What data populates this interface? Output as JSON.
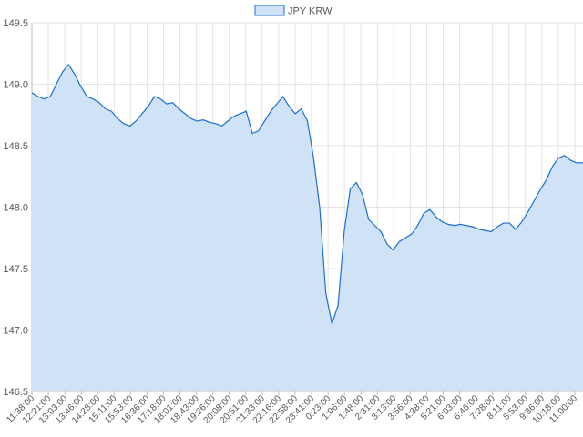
{
  "chart_data": {
    "type": "area",
    "legend": {
      "label": "JPY KRW",
      "position": "top-center"
    },
    "grid": true,
    "ylim": [
      146.5,
      149.5
    ],
    "y_ticks": [
      149.5,
      149.0,
      148.5,
      148.0,
      147.5,
      147.0,
      146.5
    ],
    "y_tick_labels": [
      "149.5",
      "149.0",
      "148.5",
      "148.0",
      "147.5",
      "147.0",
      "146.5"
    ],
    "x_tick_labels": [
      "11:38:00",
      "12:21:00",
      "13:03:00",
      "13:46:00",
      "14:28:00",
      "15:11:00",
      "15:53:00",
      "16:36:00",
      "17:18:00",
      "18:01:00",
      "18:43:00",
      "19:26:00",
      "20:08:00",
      "20:51:00",
      "21:33:00",
      "22:16:00",
      "22:58:00",
      "23:41:00",
      "0:23:00",
      "1:06:00",
      "1:48:00",
      "2:31:00",
      "3:13:00",
      "3:56:00",
      "4:38:00",
      "5:21:00",
      "6:03:00",
      "6:46:00",
      "7:28:00",
      "8:11:00",
      "8:53:00",
      "9:36:00",
      "10:18:00",
      "11:00:00"
    ],
    "series": [
      {
        "name": "JPY KRW",
        "color": "#1e6fd0",
        "fill": "#cfe2f6",
        "values": [
          148.93,
          148.9,
          148.88,
          148.9,
          149.0,
          149.1,
          149.16,
          149.08,
          148.98,
          148.9,
          148.88,
          148.85,
          148.8,
          148.78,
          148.72,
          148.68,
          148.66,
          148.7,
          148.76,
          148.82,
          148.9,
          148.88,
          148.84,
          148.85,
          148.8,
          148.76,
          148.72,
          148.7,
          148.71,
          148.69,
          148.68,
          148.66,
          148.7,
          148.74,
          148.76,
          148.78,
          148.6,
          148.62,
          148.7,
          148.78,
          148.84,
          148.9,
          148.82,
          148.76,
          148.8,
          148.7,
          148.4,
          148.0,
          147.3,
          147.05,
          147.2,
          147.8,
          148.15,
          148.2,
          148.1,
          147.9,
          147.85,
          147.8,
          147.7,
          147.65,
          147.72,
          147.75,
          147.78,
          147.85,
          147.95,
          147.98,
          147.92,
          147.88,
          147.86,
          147.85,
          147.86,
          147.85,
          147.84,
          147.82,
          147.81,
          147.8,
          147.84,
          147.87,
          147.87,
          147.82,
          147.88,
          147.96,
          148.05,
          148.14,
          148.22,
          148.33,
          148.4,
          148.42,
          148.38,
          148.36,
          148.36
        ]
      }
    ]
  }
}
